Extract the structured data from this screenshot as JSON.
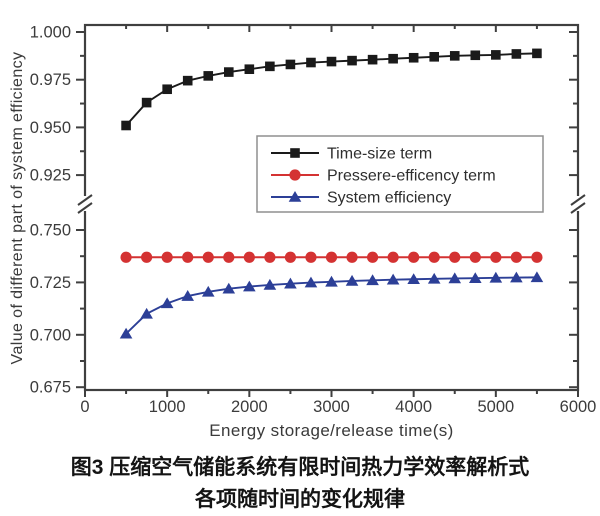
{
  "caption": {
    "line1": "图3 压缩空气储能系统有限时间热力学效率解析式",
    "line2": "各项随时间的变化规律"
  },
  "style": {
    "axis_color": "#3f3f3f",
    "tick_text_color": "#3c3c3c",
    "background": "#ffffff",
    "legend_border": "#8f8f8f",
    "series_black": "#1a1a1a",
    "series_red": "#d43232",
    "series_blue": "#2c3f97"
  },
  "chart_data": {
    "type": "line",
    "title": "",
    "xlabel": "Energy storage/release time(s)",
    "ylabel": "Value of different part of system efficiency",
    "xlim": [
      0,
      6000
    ],
    "x_tick_labels": [
      "0",
      "1000",
      "2000",
      "3000",
      "4000",
      "5000",
      "6000"
    ],
    "y_tick_labels_upper": [
      "1.000",
      "0.975",
      "0.950",
      "0.925"
    ],
    "y_tick_labels_lower": [
      "0.750",
      "0.725",
      "0.700",
      "0.675"
    ],
    "y_axis_break": {
      "lower_range": [
        0.675,
        0.755
      ],
      "upper_range": [
        0.918,
        1.0
      ]
    },
    "grid": false,
    "legend_position": "center-right",
    "x": [
      500,
      750,
      1000,
      1250,
      1500,
      1750,
      2000,
      2250,
      2500,
      2750,
      3000,
      3250,
      3500,
      3750,
      4000,
      4250,
      4500,
      4750,
      5000,
      5250,
      5500
    ],
    "series": [
      {
        "name": "Time-size term",
        "color": "#1a1a1a",
        "marker": "square",
        "values": [
          0.951,
          0.963,
          0.97,
          0.9745,
          0.977,
          0.979,
          0.9805,
          0.982,
          0.983,
          0.984,
          0.9845,
          0.985,
          0.9855,
          0.986,
          0.9865,
          0.987,
          0.9875,
          0.9878,
          0.988,
          0.9885,
          0.9888
        ]
      },
      {
        "name": "Pressere-efficency term",
        "color": "#d43232",
        "marker": "circle",
        "values": [
          0.737,
          0.737,
          0.737,
          0.737,
          0.737,
          0.737,
          0.737,
          0.737,
          0.737,
          0.737,
          0.737,
          0.737,
          0.737,
          0.737,
          0.737,
          0.737,
          0.737,
          0.737,
          0.737,
          0.737,
          0.737
        ]
      },
      {
        "name": "System efficiency",
        "color": "#2c3f97",
        "marker": "triangle",
        "values": [
          0.7005,
          0.71,
          0.715,
          0.7185,
          0.7205,
          0.722,
          0.723,
          0.7238,
          0.7244,
          0.7249,
          0.7253,
          0.7257,
          0.726,
          0.7263,
          0.7265,
          0.7267,
          0.7269,
          0.727,
          0.7272,
          0.7273,
          0.7274
        ]
      }
    ]
  }
}
